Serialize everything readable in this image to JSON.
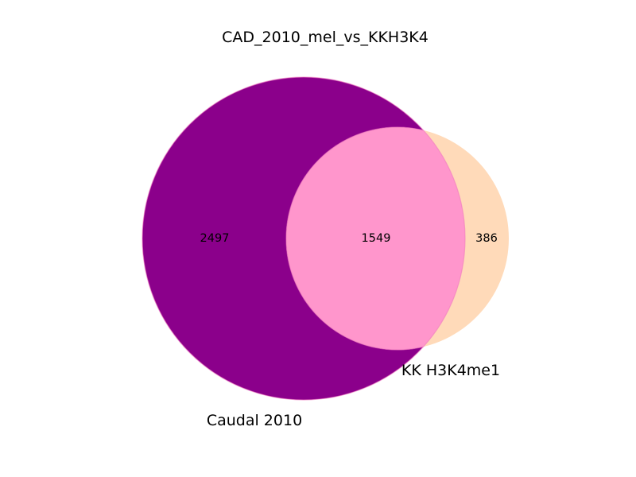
{
  "title": "CAD_2010_mel_vs_KKH3K4",
  "sets": [
    {
      "name": "Caudal 2010",
      "color": "#8b008b"
    },
    {
      "name": "KK H3K4me1",
      "color": "#ffdab9"
    }
  ],
  "intersection_color": "#ff96cc",
  "counts": {
    "only_a": "2497",
    "both": "1549",
    "only_b": "386"
  }
}
